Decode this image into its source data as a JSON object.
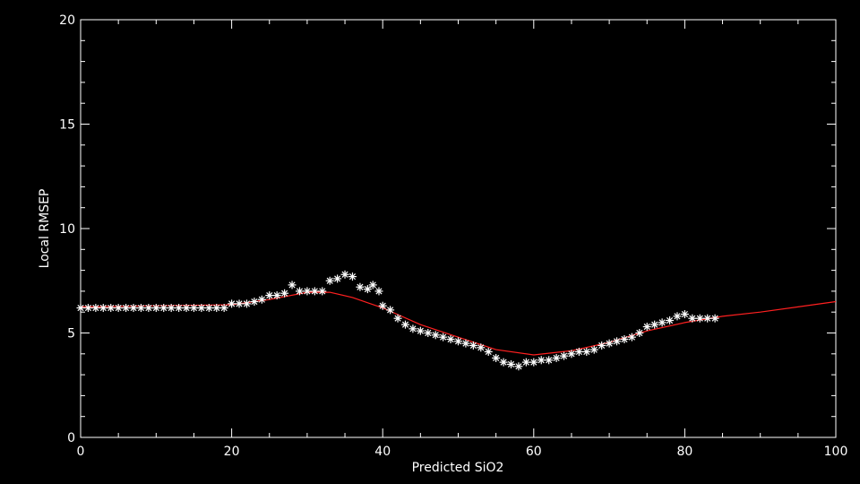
{
  "chart_data": {
    "type": "scatter",
    "title": "",
    "xlabel": "Predicted SiO2",
    "ylabel": "Local RMSEP",
    "xlim": [
      0,
      100
    ],
    "ylim": [
      0,
      20
    ],
    "x_ticks": [
      0,
      20,
      40,
      60,
      80,
      100
    ],
    "y_ticks": [
      0,
      5,
      10,
      15,
      20
    ],
    "x_tick_labels": [
      "0",
      "20",
      "40",
      "60",
      "80",
      "100"
    ],
    "y_tick_labels": [
      "0",
      "5",
      "10",
      "15",
      "20"
    ],
    "grid": false,
    "legend": "none",
    "series": [
      {
        "type": "scatter",
        "marker": "asterisk",
        "color": "#ffffff",
        "points": [
          [
            0,
            6.2
          ],
          [
            1,
            6.2
          ],
          [
            2,
            6.2
          ],
          [
            3,
            6.2
          ],
          [
            4,
            6.2
          ],
          [
            5,
            6.2
          ],
          [
            6,
            6.2
          ],
          [
            7,
            6.2
          ],
          [
            8,
            6.2
          ],
          [
            9,
            6.2
          ],
          [
            10,
            6.2
          ],
          [
            11,
            6.2
          ],
          [
            12,
            6.2
          ],
          [
            13,
            6.2
          ],
          [
            14,
            6.2
          ],
          [
            15,
            6.2
          ],
          [
            16,
            6.2
          ],
          [
            17,
            6.2
          ],
          [
            18,
            6.2
          ],
          [
            19,
            6.2
          ],
          [
            20,
            6.4
          ],
          [
            21,
            6.4
          ],
          [
            22,
            6.4
          ],
          [
            23,
            6.5
          ],
          [
            24,
            6.6
          ],
          [
            25,
            6.8
          ],
          [
            26,
            6.8
          ],
          [
            27,
            6.9
          ],
          [
            28,
            7.3
          ],
          [
            29,
            7.0
          ],
          [
            30,
            7.0
          ],
          [
            31,
            7.0
          ],
          [
            32,
            7.0
          ],
          [
            33,
            7.5
          ],
          [
            34,
            7.6
          ],
          [
            35,
            7.8
          ],
          [
            36,
            7.7
          ],
          [
            37,
            7.2
          ],
          [
            38,
            7.1
          ],
          [
            38.7,
            7.3
          ],
          [
            39.5,
            7.0
          ],
          [
            40,
            6.3
          ],
          [
            41,
            6.1
          ],
          [
            42,
            5.7
          ],
          [
            43,
            5.4
          ],
          [
            44,
            5.2
          ],
          [
            45,
            5.1
          ],
          [
            46,
            5.0
          ],
          [
            47,
            4.9
          ],
          [
            48,
            4.8
          ],
          [
            49,
            4.7
          ],
          [
            50,
            4.6
          ],
          [
            51,
            4.5
          ],
          [
            52,
            4.4
          ],
          [
            53,
            4.3
          ],
          [
            54,
            4.1
          ],
          [
            55,
            3.8
          ],
          [
            56,
            3.6
          ],
          [
            57,
            3.5
          ],
          [
            58,
            3.4
          ],
          [
            59,
            3.6
          ],
          [
            60,
            3.6
          ],
          [
            61,
            3.7
          ],
          [
            62,
            3.7
          ],
          [
            63,
            3.8
          ],
          [
            64,
            3.9
          ],
          [
            65,
            4.0
          ],
          [
            66,
            4.1
          ],
          [
            67,
            4.1
          ],
          [
            68,
            4.2
          ],
          [
            69,
            4.4
          ],
          [
            70,
            4.5
          ],
          [
            71,
            4.6
          ],
          [
            72,
            4.7
          ],
          [
            73,
            4.8
          ],
          [
            74,
            5.0
          ],
          [
            75,
            5.3
          ],
          [
            76,
            5.4
          ],
          [
            77,
            5.5
          ],
          [
            78,
            5.6
          ],
          [
            79,
            5.8
          ],
          [
            80,
            5.9
          ],
          [
            81,
            5.7
          ],
          [
            82,
            5.7
          ],
          [
            83,
            5.7
          ],
          [
            84,
            5.7
          ]
        ]
      },
      {
        "type": "line",
        "color": "#ff2020",
        "points": [
          [
            0,
            6.25
          ],
          [
            10,
            6.3
          ],
          [
            20,
            6.35
          ],
          [
            25,
            6.6
          ],
          [
            30,
            6.95
          ],
          [
            33,
            6.95
          ],
          [
            36,
            6.7
          ],
          [
            40,
            6.2
          ],
          [
            45,
            5.4
          ],
          [
            50,
            4.8
          ],
          [
            55,
            4.2
          ],
          [
            60,
            3.95
          ],
          [
            65,
            4.15
          ],
          [
            70,
            4.55
          ],
          [
            75,
            5.1
          ],
          [
            80,
            5.5
          ],
          [
            85,
            5.8
          ],
          [
            90,
            6.0
          ],
          [
            95,
            6.25
          ],
          [
            100,
            6.5
          ]
        ]
      }
    ]
  }
}
